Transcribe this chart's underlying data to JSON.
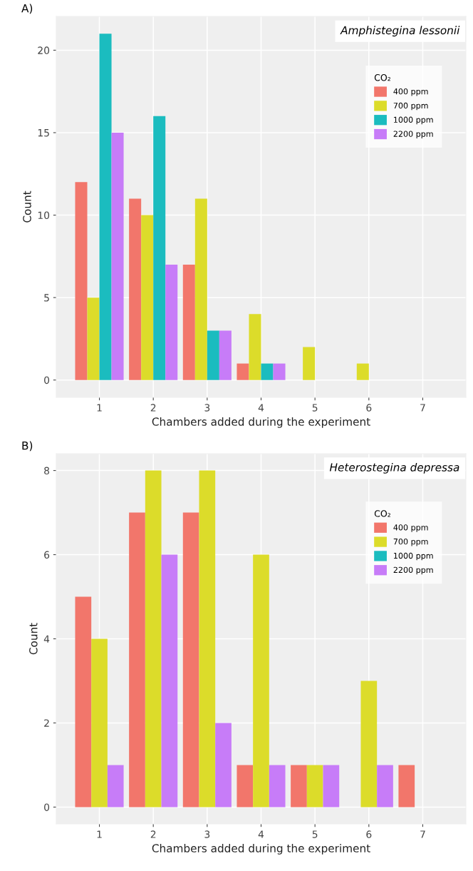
{
  "chart_data": [
    {
      "type": "bar",
      "title": "A)",
      "xlabel": "Chambers added during the experiment",
      "ylabel": "Count",
      "legend_title": "CO₂",
      "annotations": [
        "Amphistegina lessonii"
      ],
      "x": [
        1,
        2,
        3,
        4,
        5,
        6
      ],
      "xlim": [
        0.2,
        7.8
      ],
      "xticks": [
        1,
        2,
        3,
        4,
        5,
        6,
        7
      ],
      "ylim": [
        -1.05,
        22.05
      ],
      "yticks": [
        0,
        5,
        10,
        15,
        20
      ],
      "grid": true,
      "legend": "top right",
      "series": [
        {
          "name": "400 ppm",
          "color": "#f2766b",
          "values": [
            12,
            11,
            7,
            1,
            null,
            null
          ]
        },
        {
          "name": "700 ppm",
          "color": "#dcdc2a",
          "values": [
            5,
            10,
            11,
            4,
            2,
            1
          ]
        },
        {
          "name": "1000 ppm",
          "color": "#1bbcbf",
          "values": [
            21,
            16,
            3,
            1,
            null,
            null
          ]
        },
        {
          "name": "2200 ppm",
          "color": "#c77cf8",
          "values": [
            15,
            7,
            3,
            1,
            null,
            null
          ]
        }
      ]
    },
    {
      "type": "bar",
      "title": "B)",
      "xlabel": "Chambers added during the experiment",
      "ylabel": "Count",
      "legend_title": "CO₂",
      "annotations": [
        "Heterostegina depressa"
      ],
      "x": [
        1,
        2,
        3,
        4,
        5,
        6,
        7
      ],
      "xlim": [
        0.2,
        7.8
      ],
      "xticks": [
        1,
        2,
        3,
        4,
        5,
        6,
        7
      ],
      "ylim": [
        -0.4,
        8.4
      ],
      "yticks": [
        0,
        2,
        4,
        6,
        8
      ],
      "grid": true,
      "legend": "top right",
      "series": [
        {
          "name": "400 ppm",
          "color": "#f2766b",
          "values": [
            5,
            7,
            7,
            1,
            1,
            null,
            1
          ]
        },
        {
          "name": "700 ppm",
          "color": "#dcdc2a",
          "values": [
            4,
            8,
            8,
            6,
            1,
            3,
            null
          ]
        },
        {
          "name": "1000 ppm",
          "color": "#1bbcbf",
          "values": [
            null,
            null,
            null,
            null,
            null,
            null,
            null
          ]
        },
        {
          "name": "2200 ppm",
          "color": "#c77cf8",
          "values": [
            1,
            6,
            2,
            1,
            1,
            1,
            null
          ]
        }
      ]
    }
  ]
}
